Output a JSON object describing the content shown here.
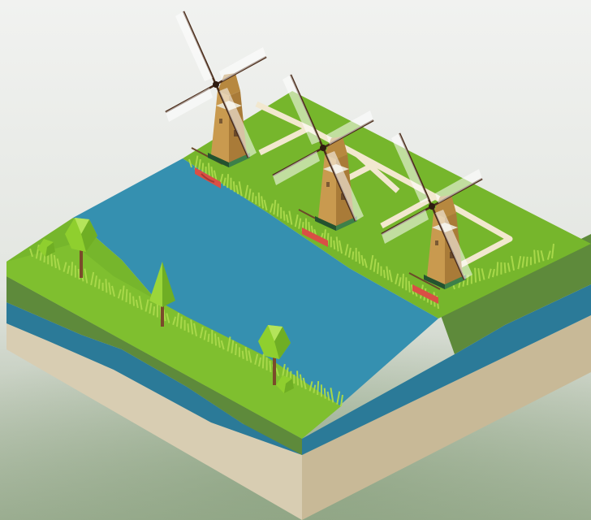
{
  "scene": {
    "subject": "isometric-windmill-diorama",
    "windmill_count": 3,
    "tree_count": 3,
    "colors": {
      "sky": "#eef0ed",
      "haze": "#b9c4b3",
      "grass_top": "#76b62c",
      "grass_side": "#5e8a3b",
      "water": "#3590b0",
      "water_dark": "#2b7a98",
      "soil": "#d8cdb2",
      "soil_dark": "#c8b997",
      "path": "#f2e8cf",
      "mill_body": "#c99a4f",
      "mill_shade": "#a97b38",
      "mill_base": "#2f6b3c",
      "bridge": "#d94f45",
      "tree_leaf": "#8fcf2e",
      "tree_trunk": "#7a4a2a"
    }
  }
}
